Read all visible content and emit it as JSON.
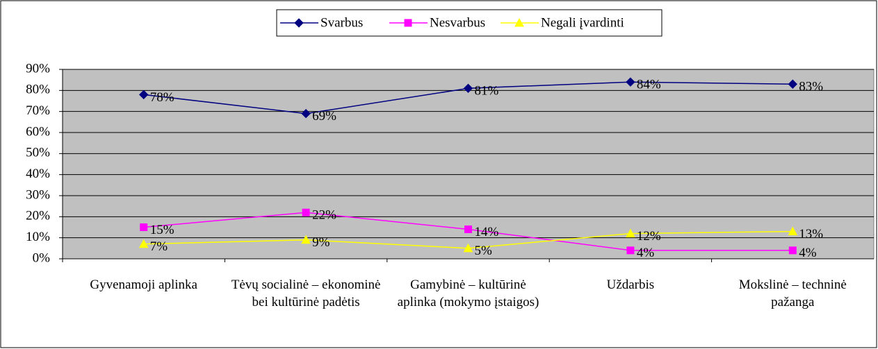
{
  "chart_data": {
    "type": "line",
    "categories": [
      "Gyvenamoji aplinka",
      "Tėvų socialinė – ekonominė bei kultūrinė padėtis",
      "Gamybinė – kultūrinė aplinka (mokymo įstaigos)",
      "Uždarbis",
      "Mokslinė – techninė pažanga"
    ],
    "series": [
      {
        "name": "Svarbus",
        "color": "#000080",
        "marker": "diamond",
        "values": [
          78,
          69,
          81,
          84,
          83
        ],
        "value_labels": [
          "78%",
          "69%",
          "81%",
          "84%",
          "83%"
        ]
      },
      {
        "name": "Nesvarbus",
        "color": "#ff00ff",
        "marker": "square",
        "values": [
          15,
          22,
          14,
          4,
          4
        ],
        "value_labels": [
          "15%",
          "22%",
          "14%",
          "4%",
          "4%"
        ]
      },
      {
        "name": "Negali įvardinti",
        "color": "#ffff00",
        "marker": "triangle",
        "values": [
          7,
          9,
          5,
          12,
          13
        ],
        "value_labels": [
          "7%",
          "9%",
          "5%",
          "12%",
          "13%"
        ]
      }
    ],
    "ylim": [
      0,
      90
    ],
    "yticks": [
      {
        "value": 0,
        "label": "0%"
      },
      {
        "value": 10,
        "label": "10%"
      },
      {
        "value": 20,
        "label": "20%"
      },
      {
        "value": 30,
        "label": "30%"
      },
      {
        "value": 40,
        "label": "40%"
      },
      {
        "value": 50,
        "label": "50%"
      },
      {
        "value": 60,
        "label": "60%"
      },
      {
        "value": 70,
        "label": "70%"
      },
      {
        "value": 80,
        "label": "80%"
      },
      {
        "value": 90,
        "label": "90%"
      }
    ],
    "grid": true,
    "legend": "top",
    "plot_background": "#c0c0c0"
  }
}
